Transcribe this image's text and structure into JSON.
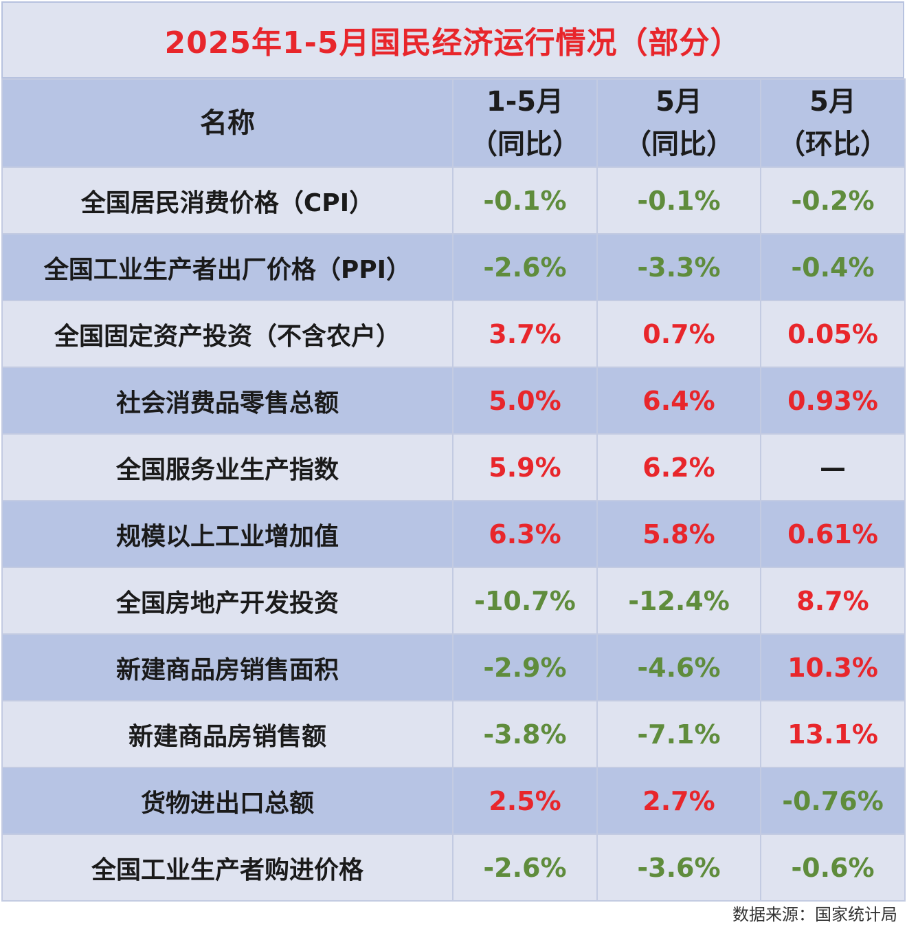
{
  "title": "2025年1-5月国民经济运行情况（部分）",
  "headers": {
    "name": "名称",
    "c1_line1": "1-5月",
    "c1_line2": "（同比）",
    "c2_line1": "5月",
    "c2_line2": "（同比）",
    "c3_line1": "5月",
    "c3_line2": "（环比）"
  },
  "rows": [
    {
      "name": "全国居民消费价格（CPI）",
      "v1": "-0.1%",
      "v2": "-0.1%",
      "v3": "-0.2%",
      "s1": "neg",
      "s2": "neg",
      "s3": "neg"
    },
    {
      "name": "全国工业生产者出厂价格（PPI）",
      "v1": "-2.6%",
      "v2": "-3.3%",
      "v3": "-0.4%",
      "s1": "neg",
      "s2": "neg",
      "s3": "neg"
    },
    {
      "name": "全国固定资产投资（不含农户）",
      "v1": "3.7%",
      "v2": "0.7%",
      "v3": "0.05%",
      "s1": "pos",
      "s2": "pos",
      "s3": "pos"
    },
    {
      "name": "社会消费品零售总额",
      "v1": "5.0%",
      "v2": "6.4%",
      "v3": "0.93%",
      "s1": "pos",
      "s2": "pos",
      "s3": "pos"
    },
    {
      "name": "全国服务业生产指数",
      "v1": "5.9%",
      "v2": "6.2%",
      "v3": "—",
      "s1": "pos",
      "s2": "pos",
      "s3": "nil"
    },
    {
      "name": "规模以上工业增加值",
      "v1": "6.3%",
      "v2": "5.8%",
      "v3": "0.61%",
      "s1": "pos",
      "s2": "pos",
      "s3": "pos"
    },
    {
      "name": "全国房地产开发投资",
      "v1": "-10.7%",
      "v2": "-12.4%",
      "v3": "8.7%",
      "s1": "neg",
      "s2": "neg",
      "s3": "pos"
    },
    {
      "name": "新建商品房销售面积",
      "v1": "-2.9%",
      "v2": "-4.6%",
      "v3": "10.3%",
      "s1": "neg",
      "s2": "neg",
      "s3": "pos"
    },
    {
      "name": "新建商品房销售额",
      "v1": "-3.8%",
      "v2": "-7.1%",
      "v3": "13.1%",
      "s1": "neg",
      "s2": "neg",
      "s3": "pos"
    },
    {
      "name": "货物进出口总额",
      "v1": "2.5%",
      "v2": "2.7%",
      "v3": "-0.76%",
      "s1": "pos",
      "s2": "pos",
      "s3": "neg"
    },
    {
      "name": "全国工业生产者购进价格",
      "v1": "-2.6%",
      "v2": "-3.6%",
      "v3": "-0.6%",
      "s1": "neg",
      "s2": "neg",
      "s3": "neg"
    }
  ],
  "footer": "数据来源：国家统计局",
  "colors": {
    "positive": "#e8262b",
    "negative": "#5f8c3c",
    "header_bg": "#b7c4e4",
    "light_bg": "#dfe3f0"
  }
}
